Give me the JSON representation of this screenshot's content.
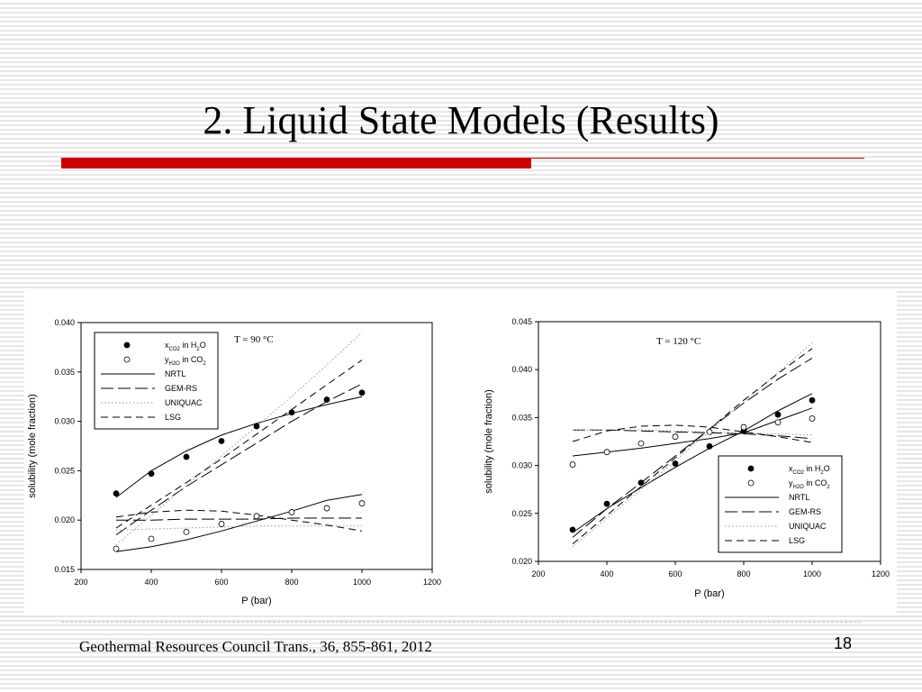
{
  "slide": {
    "title": "2. Liquid State Models (Results)",
    "footer": "Geothermal Resources Council  Trans., 36,  855-861, 2012",
    "page_number": "18",
    "accent_color": "#cc0000"
  },
  "chart_data": [
    {
      "type": "scatter",
      "annotation": "T = 90 °C",
      "xlabel": "P (bar)",
      "ylabel": "solubility (mole fraction)",
      "xlim": [
        200,
        1200
      ],
      "ylim": [
        0.015,
        0.04
      ],
      "xticks": [
        200,
        400,
        600,
        800,
        1000,
        1200
      ],
      "yticks": [
        0.015,
        0.02,
        0.025,
        0.03,
        0.035,
        0.04
      ],
      "xtick_labels": [
        "200",
        "400",
        "600",
        "800",
        "1000",
        "1200"
      ],
      "ytick_labels": [
        "0.015",
        "0.020",
        "0.025",
        "0.030",
        "0.035",
        "0.040"
      ],
      "legend_position": "top-left",
      "legend": [
        {
          "label": "x",
          "sub": "CO",
          "sub2": "2",
          "rest": " in H",
          "rsub": "2",
          "rend": "O",
          "marker": "filled-circle"
        },
        {
          "label": "y",
          "sub": "H",
          "sub2": "2",
          "sub3": "O",
          "rest": " in CO",
          "rsub": "2",
          "rend": "",
          "marker": "open-circle"
        },
        {
          "label": "NRTL",
          "line": "solid"
        },
        {
          "label": "GEM-RS",
          "line": "long-dash"
        },
        {
          "label": "UNIQUAC",
          "line": "dotted"
        },
        {
          "label": "LSG",
          "line": "dash"
        }
      ],
      "points": [
        {
          "name": "xCO2 in H2O",
          "marker": "filled-circle",
          "x": [
            300,
            400,
            500,
            600,
            700,
            800,
            900,
            1000
          ],
          "y": [
            0.0227,
            0.0247,
            0.0264,
            0.028,
            0.0295,
            0.0309,
            0.0322,
            0.0329
          ]
        },
        {
          "name": "yH2O in CO2",
          "marker": "open-circle",
          "x": [
            300,
            400,
            500,
            600,
            700,
            800,
            900,
            1000
          ],
          "y": [
            0.0171,
            0.0181,
            0.0188,
            0.0196,
            0.0204,
            0.0208,
            0.0212,
            0.0217
          ]
        }
      ],
      "series": [
        {
          "name": "NRTL",
          "x": [
            300,
            400,
            500,
            600,
            700,
            800,
            900,
            1000
          ],
          "y": [
            0.0223,
            0.025,
            0.027,
            0.0286,
            0.0298,
            0.0308,
            0.0317,
            0.0325
          ],
          "line": "solid"
        },
        {
          "name": "NRTL",
          "x": [
            300,
            400,
            500,
            600,
            700,
            800,
            900,
            1000
          ],
          "y": [
            0.0168,
            0.0173,
            0.018,
            0.0189,
            0.0199,
            0.0209,
            0.022,
            0.0226
          ],
          "line": "solid"
        },
        {
          "name": "GEM-RS",
          "x": [
            300,
            400,
            500,
            600,
            700,
            800,
            900,
            1000
          ],
          "y": [
            0.0185,
            0.021,
            0.0234,
            0.0256,
            0.0278,
            0.03,
            0.032,
            0.0338
          ],
          "line": "long-dash"
        },
        {
          "name": "GEM-RS",
          "x": [
            300,
            400,
            500,
            600,
            700,
            800,
            900,
            1000
          ],
          "y": [
            0.02,
            0.02,
            0.0201,
            0.0201,
            0.0201,
            0.0202,
            0.0202,
            0.0202
          ],
          "line": "long-dash"
        },
        {
          "name": "UNIQUAC",
          "x": [
            300,
            400,
            500,
            600,
            700,
            800,
            900,
            1000
          ],
          "y": [
            0.0175,
            0.0205,
            0.0235,
            0.0265,
            0.0295,
            0.0325,
            0.0357,
            0.039
          ],
          "line": "dotted"
        },
        {
          "name": "UNIQUAC",
          "x": [
            300,
            400,
            500,
            600,
            700,
            800,
            900,
            1000
          ],
          "y": [
            0.019,
            0.0191,
            0.0192,
            0.0193,
            0.0194,
            0.0194,
            0.0194,
            0.0194
          ],
          "line": "dotted"
        },
        {
          "name": "LSG",
          "x": [
            300,
            400,
            500,
            600,
            700,
            800,
            900,
            1000
          ],
          "y": [
            0.0192,
            0.0215,
            0.0238,
            0.0262,
            0.0287,
            0.0312,
            0.0337,
            0.0362
          ],
          "line": "dash"
        },
        {
          "name": "LSG",
          "x": [
            300,
            400,
            500,
            600,
            700,
            800,
            900,
            1000
          ],
          "y": [
            0.0203,
            0.0208,
            0.021,
            0.0209,
            0.0205,
            0.02,
            0.0195,
            0.0189
          ],
          "line": "dash"
        }
      ]
    },
    {
      "type": "scatter",
      "annotation": "T = 120 °C",
      "xlabel": "P (bar)",
      "ylabel": "solubility (mole fraction)",
      "xlim": [
        200,
        1200
      ],
      "ylim": [
        0.02,
        0.045
      ],
      "xticks": [
        200,
        400,
        600,
        800,
        1000,
        1200
      ],
      "yticks": [
        0.02,
        0.025,
        0.03,
        0.035,
        0.04,
        0.045
      ],
      "xtick_labels": [
        "200",
        "400",
        "600",
        "800",
        "1000",
        "1200"
      ],
      "ytick_labels": [
        "0.020",
        "0.025",
        "0.030",
        "0.035",
        "0.040",
        "0.045"
      ],
      "legend_position": "bottom-right",
      "legend": [
        {
          "label": "x",
          "sub": "CO",
          "sub2": "2",
          "rest": " in H",
          "rsub": "2",
          "rend": "O",
          "marker": "filled-circle"
        },
        {
          "label": "y",
          "sub": "H",
          "sub2": "2",
          "sub3": "O",
          "rest": " in CO",
          "rsub": "2",
          "rend": "",
          "marker": "open-circle"
        },
        {
          "label": "NRTL",
          "line": "solid"
        },
        {
          "label": "GEM-RS",
          "line": "long-dash"
        },
        {
          "label": "UNIQUAC",
          "line": "dotted"
        },
        {
          "label": "LSG",
          "line": "dash"
        }
      ],
      "points": [
        {
          "name": "xCO2 in H2O",
          "marker": "filled-circle",
          "x": [
            300,
            400,
            500,
            600,
            700,
            800,
            900,
            1000
          ],
          "y": [
            0.0233,
            0.026,
            0.0282,
            0.0302,
            0.032,
            0.0336,
            0.0353,
            0.0368
          ]
        },
        {
          "name": "yH2O in CO2",
          "marker": "open-circle",
          "x": [
            300,
            400,
            500,
            600,
            700,
            800,
            900,
            1000
          ],
          "y": [
            0.0301,
            0.0314,
            0.0323,
            0.033,
            0.0335,
            0.034,
            0.0345,
            0.0349
          ]
        }
      ],
      "series": [
        {
          "name": "NRTL",
          "x": [
            300,
            400,
            500,
            600,
            700,
            800,
            900,
            1000
          ],
          "y": [
            0.023,
            0.0255,
            0.0277,
            0.0298,
            0.0318,
            0.0336,
            0.0357,
            0.0375
          ],
          "line": "solid"
        },
        {
          "name": "NRTL",
          "x": [
            300,
            400,
            500,
            600,
            700,
            800,
            900,
            1000
          ],
          "y": [
            0.031,
            0.0314,
            0.0318,
            0.0323,
            0.0328,
            0.0334,
            0.0347,
            0.036
          ],
          "line": "solid"
        },
        {
          "name": "GEM-RS",
          "x": [
            300,
            400,
            500,
            600,
            700,
            800,
            900,
            1000
          ],
          "y": [
            0.0225,
            0.0255,
            0.0282,
            0.031,
            0.0338,
            0.0365,
            0.039,
            0.0412
          ],
          "line": "long-dash"
        },
        {
          "name": "GEM-RS",
          "x": [
            300,
            400,
            500,
            600,
            700,
            800,
            900,
            1000
          ],
          "y": [
            0.0337,
            0.0337,
            0.0336,
            0.0335,
            0.0334,
            0.0333,
            0.0331,
            0.0328
          ],
          "line": "long-dash"
        },
        {
          "name": "UNIQUAC",
          "x": [
            300,
            400,
            500,
            600,
            700,
            800,
            900,
            1000
          ],
          "y": [
            0.0215,
            0.0245,
            0.0275,
            0.0305,
            0.0336,
            0.0366,
            0.0397,
            0.0428
          ],
          "line": "dotted"
        },
        {
          "name": "UNIQUAC",
          "x": [
            300,
            400,
            500,
            600,
            700,
            800,
            900,
            1000
          ],
          "y": [
            0.0337,
            0.0337,
            0.0337,
            0.0336,
            0.0335,
            0.0334,
            0.0333,
            0.0332
          ],
          "line": "dotted"
        },
        {
          "name": "LSG",
          "x": [
            300,
            400,
            500,
            600,
            700,
            800,
            900,
            1000
          ],
          "y": [
            0.0218,
            0.0248,
            0.0278,
            0.0308,
            0.0338,
            0.0368,
            0.0396,
            0.0422
          ],
          "line": "dash"
        },
        {
          "name": "LSG",
          "x": [
            300,
            400,
            500,
            600,
            700,
            800,
            900,
            1000
          ],
          "y": [
            0.0325,
            0.0336,
            0.0341,
            0.0342,
            0.034,
            0.0335,
            0.033,
            0.0324
          ],
          "line": "dash"
        }
      ]
    }
  ]
}
